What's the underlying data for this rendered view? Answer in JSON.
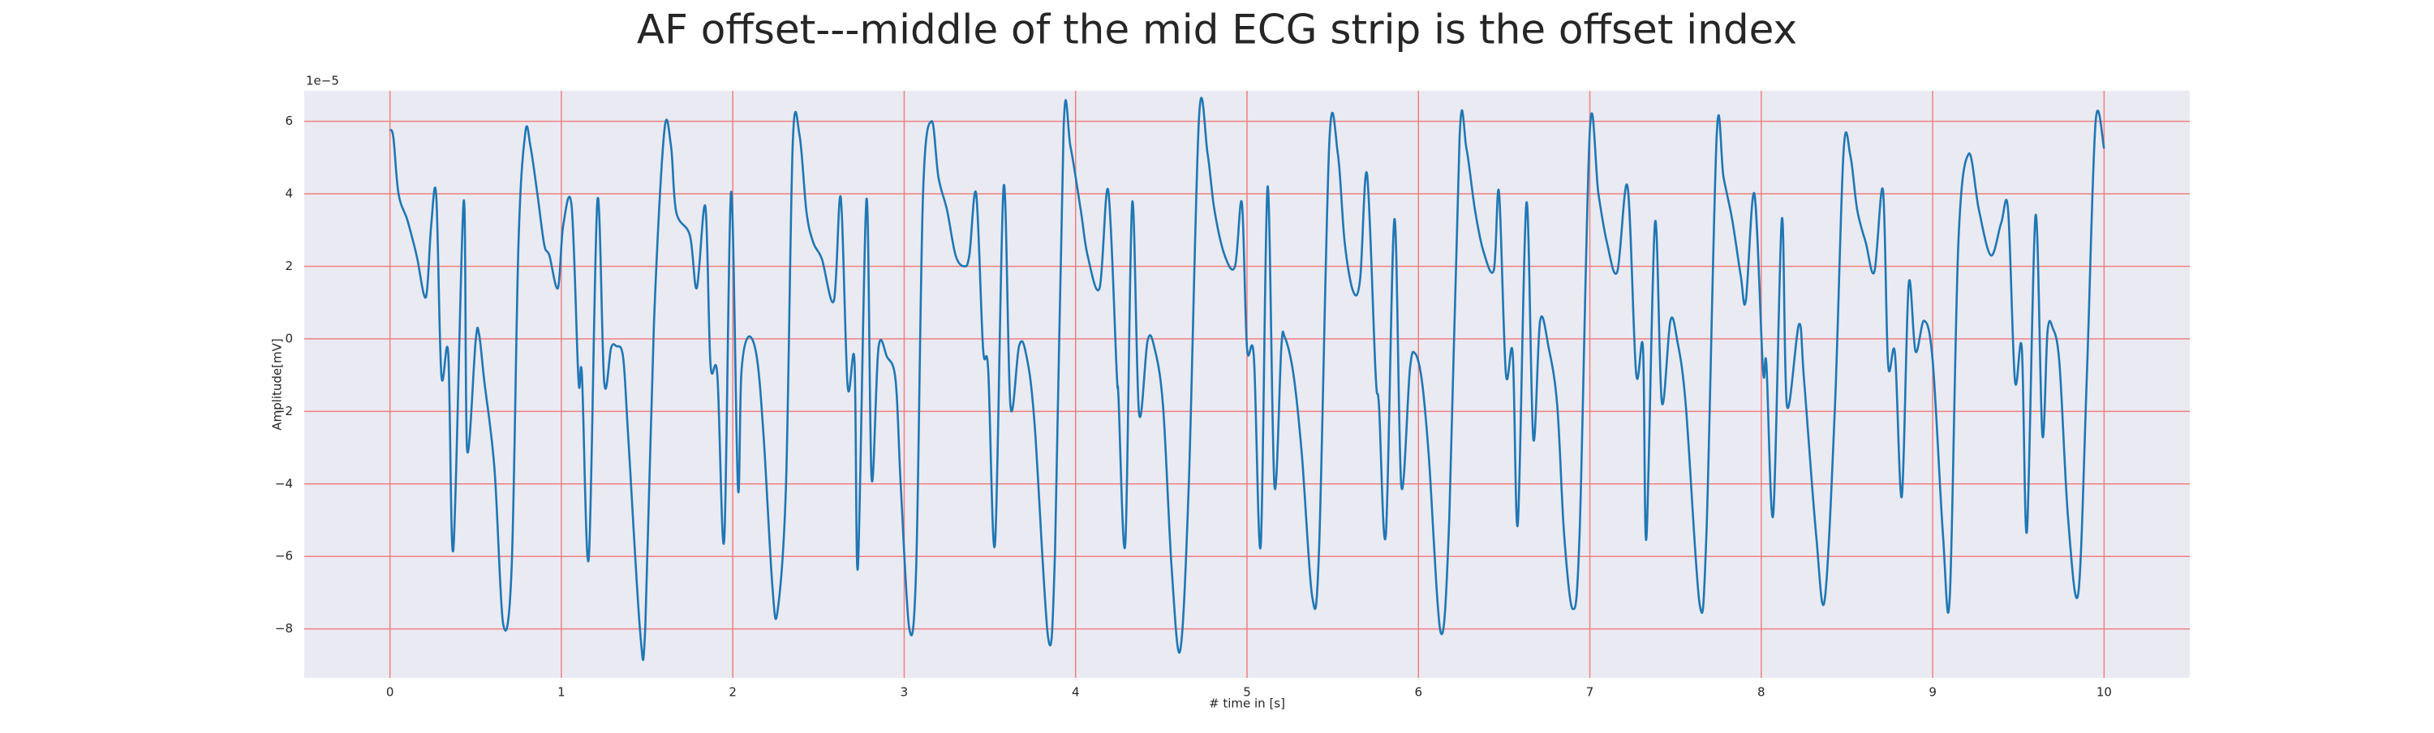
{
  "chart_data": {
    "type": "line",
    "title": "AF offset---middle of the mid ECG strip is the offset index",
    "xlabel": "# time in [s]",
    "ylabel": "Amplitude[mV]",
    "y_offset_text": "1e−5",
    "color": "#1f77b4",
    "grid": true,
    "grid_color": "#f08080",
    "xlim": [
      -0.5,
      10.5
    ],
    "ylim": [
      -9.35,
      6.84
    ],
    "xticks": [
      0,
      1,
      2,
      3,
      4,
      5,
      6,
      7,
      8,
      9,
      10
    ],
    "yticks": [
      {
        "value": -8,
        "label": "−8"
      },
      {
        "value": -6,
        "label": "−6"
      },
      {
        "value": -4,
        "label": "−4"
      },
      {
        "value": -2,
        "label": "−2"
      },
      0,
      2,
      4,
      6
    ],
    "x": [
      0,
      0.02,
      0.05,
      0.1,
      0.14,
      0.16,
      0.21,
      0.24,
      0.27,
      0.3,
      0.34,
      0.37,
      0.43,
      0.45,
      0.5,
      0.52,
      0.55,
      0.61,
      0.66,
      0.71,
      0.75,
      0.79,
      0.82,
      0.86,
      0.9,
      0.93,
      0.98,
      1.01,
      1.06,
      1.1,
      1.12,
      1.16,
      1.21,
      1.25,
      1.29,
      1.32,
      1.36,
      1.39,
      1.46,
      1.49,
      1.54,
      1.6,
      1.64,
      1.67,
      1.75,
      1.79,
      1.84,
      1.87,
      1.91,
      1.95,
      1.99,
      2.03,
      2.05,
      2.09,
      2.14,
      2.18,
      2.23,
      2.26,
      2.31,
      2.35,
      2.39,
      2.43,
      2.47,
      2.52,
      2.59,
      2.63,
      2.67,
      2.71,
      2.73,
      2.78,
      2.81,
      2.85,
      2.9,
      2.95,
      2.98,
      3.03,
      3.07,
      3.11,
      3.16,
      3.2,
      3.25,
      3.3,
      3.35,
      3.38,
      3.42,
      3.46,
      3.49,
      3.53,
      3.58,
      3.62,
      3.67,
      3.71,
      3.76,
      3.84,
      3.88,
      3.93,
      3.97,
      4.03,
      4.07,
      4.14,
      4.19,
      4.24,
      4.25,
      4.29,
      4.33,
      4.37,
      4.42,
      4.46,
      4.51,
      4.56,
      4.61,
      4.66,
      4.72,
      4.77,
      4.81,
      4.87,
      4.93,
      4.97,
      5.0,
      5.04,
      5.08,
      5.12,
      5.16,
      5.2,
      5.22,
      5.27,
      5.32,
      5.38,
      5.42,
      5.48,
      5.53,
      5.57,
      5.62,
      5.66,
      5.7,
      5.75,
      5.77,
      5.81,
      5.86,
      5.9,
      5.95,
      5.98,
      6.02,
      6.06,
      6.13,
      6.18,
      6.24,
      6.28,
      6.33,
      6.38,
      6.44,
      6.47,
      6.51,
      6.55,
      6.58,
      6.63,
      6.67,
      6.71,
      6.76,
      6.81,
      6.85,
      6.9,
      6.94,
      7.0,
      7.05,
      7.1,
      7.16,
      7.22,
      7.27,
      7.31,
      7.33,
      7.38,
      7.42,
      7.47,
      7.51,
      7.56,
      7.64,
      7.68,
      7.74,
      7.78,
      7.83,
      7.88,
      7.91,
      7.96,
      8.01,
      8.03,
      8.07,
      8.12,
      8.15,
      8.22,
      8.25,
      8.32,
      8.37,
      8.43,
      8.48,
      8.52,
      8.56,
      8.61,
      8.66,
      8.71,
      8.74,
      8.78,
      8.82,
      8.86,
      8.9,
      8.95,
      9.0,
      9.06,
      9.1,
      9.15,
      9.21,
      9.27,
      9.34,
      9.4,
      9.44,
      9.48,
      9.52,
      9.55,
      9.6,
      9.64,
      9.67,
      9.7,
      9.74,
      9.79,
      9.85,
      9.9,
      9.95,
      10.0
    ],
    "values": [
      5.77,
      5.55,
      4.0,
      3.3,
      2.6,
      2.2,
      1.15,
      3.1,
      3.95,
      -1.0,
      -0.4,
      -5.8,
      3.8,
      -3.05,
      -0.05,
      0.13,
      -1.15,
      -3.6,
      -7.85,
      -6.3,
      2.65,
      5.7,
      5.3,
      4.0,
      2.6,
      2.3,
      1.4,
      3.1,
      3.65,
      -1.15,
      -1.0,
      -6.05,
      3.8,
      -1.2,
      -0.25,
      -0.2,
      -0.5,
      -2.7,
      -8.1,
      -7.9,
      0.4,
      5.7,
      5.3,
      3.5,
      2.85,
      1.4,
      3.65,
      -0.7,
      -1.0,
      -5.55,
      4.05,
      -4.1,
      -0.95,
      0.05,
      -0.5,
      -2.7,
      -6.75,
      -7.55,
      -4.1,
      5.4,
      5.6,
      3.5,
      2.65,
      2.2,
      1.05,
      3.9,
      -1.3,
      -0.6,
      -6.3,
      3.85,
      -3.85,
      -0.25,
      -0.5,
      -1.15,
      -4.05,
      -8.0,
      -6.3,
      4.0,
      6.0,
      4.45,
      3.55,
      2.3,
      2.0,
      2.3,
      4.0,
      -0.25,
      -0.85,
      -5.65,
      4.2,
      -1.85,
      -0.2,
      -0.4,
      -2.3,
      -8.25,
      -5.85,
      5.8,
      5.3,
      3.55,
      2.3,
      1.4,
      4.1,
      -0.95,
      -1.6,
      -5.65,
      3.75,
      -2.05,
      -0.05,
      -0.25,
      -1.85,
      -6.3,
      -8.6,
      -4.05,
      6.1,
      5.1,
      3.55,
      2.3,
      2.0,
      3.75,
      -0.25,
      -0.5,
      -5.7,
      4.2,
      -4.05,
      -0.25,
      0.05,
      -0.95,
      -3.2,
      -7.1,
      -5.85,
      5.4,
      5.1,
      2.65,
      1.3,
      1.65,
      4.55,
      -0.95,
      -1.85,
      -5.4,
      3.3,
      -4.05,
      -0.85,
      -0.4,
      -1.15,
      -3.2,
      -8.1,
      -4.95,
      5.55,
      5.25,
      3.55,
      2.4,
      1.9,
      4.05,
      -0.95,
      -0.4,
      -5.1,
      3.75,
      -2.75,
      0.5,
      -0.25,
      -1.85,
      -5.4,
      -7.45,
      -5.4,
      5.75,
      4.0,
      2.65,
      1.85,
      4.2,
      -0.95,
      -0.25,
      -5.5,
      3.2,
      -1.75,
      0.5,
      -0.05,
      -1.85,
      -7.3,
      -5.4,
      5.6,
      4.45,
      3.3,
      1.75,
      1.05,
      4.0,
      -0.85,
      -0.7,
      -4.85,
      3.3,
      -1.85,
      0.4,
      -1.15,
      -5.4,
      -7.2,
      -1.85,
      5.15,
      5.05,
      3.55,
      2.65,
      1.85,
      4.1,
      -0.7,
      -0.4,
      -4.35,
      1.5,
      -0.35,
      0.5,
      -0.6,
      -5.4,
      -7.1,
      2.65,
      5.1,
      3.55,
      2.3,
      3.2,
      3.55,
      -1.15,
      -0.25,
      -5.3,
      3.4,
      -2.65,
      0.2,
      0.3,
      -0.7,
      -4.95,
      -7.0,
      -0.95,
      5.95,
      5.25
    ]
  }
}
